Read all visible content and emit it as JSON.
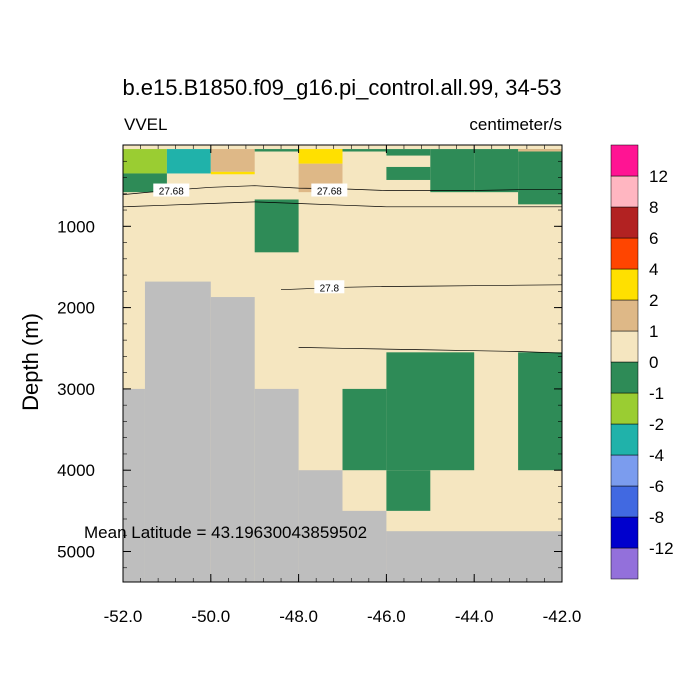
{
  "chart_data": {
    "type": "heatmap",
    "title": "b.e15.B1850.f09_g16.pi_control.all.99, 34-53",
    "left_label": "VVEL",
    "right_label": "centimeter/s",
    "ylabel": "Depth (m)",
    "xlabel": "",
    "xlim": [
      -52.0,
      -42.0
    ],
    "ylim": [
      0,
      5375
    ],
    "y_reversed": true,
    "x_ticks": [
      -52.0,
      -50.0,
      -48.0,
      -46.0,
      -44.0,
      -42.0
    ],
    "x_tick_labels": [
      "-52.0",
      "-50.0",
      "-48.0",
      "-46.0",
      "-44.0",
      "-42.0"
    ],
    "y_ticks": [
      1000,
      2000,
      3000,
      4000,
      5000
    ],
    "y_tick_labels": [
      "1000",
      "2000",
      "3000",
      "4000",
      "5000"
    ],
    "annotation": "Mean Latitude = 43.19630043859502",
    "colors": {
      "background_field": "#F5E6C0",
      "land_mask": "#BEBEBE",
      "axis": "#000000"
    },
    "colorbar": {
      "labels": [
        "12",
        "8",
        "6",
        "4",
        "2",
        "1",
        "0",
        "-1",
        "-2",
        "-4",
        "-6",
        "-8",
        "-12"
      ],
      "colors": [
        "#9370DB",
        "#0000CD",
        "#4169E1",
        "#7B9CEE",
        "#20B2AA",
        "#9ACD32",
        "#2E8B57",
        "#F5E6C0",
        "#DEB887",
        "#FFE000",
        "#FF4500",
        "#B22222",
        "#FFB6C1",
        "#FF1493"
      ]
    },
    "cells": [
      {
        "x0": -52.0,
        "x1": -51.0,
        "y0": 50,
        "y1": 350,
        "value": "-1",
        "color": "#9ACD32"
      },
      {
        "x0": -52.0,
        "x1": -51.0,
        "y0": 350,
        "y1": 580,
        "value": "-0.5",
        "color": "#2E8B57"
      },
      {
        "x0": -51.0,
        "x1": -50.0,
        "y0": 50,
        "y1": 350,
        "value": "-2",
        "color": "#20B2AA"
      },
      {
        "x0": -50.0,
        "x1": -49.0,
        "y0": 50,
        "y1": 330,
        "value": "1",
        "color": "#DEB887"
      },
      {
        "x0": -50.0,
        "x1": -49.0,
        "y0": 330,
        "y1": 360,
        "value": "2",
        "color": "#FFE000"
      },
      {
        "x0": -49.0,
        "x1": -48.0,
        "y0": 50,
        "y1": 80,
        "value": "-0.5",
        "color": "#2E8B57"
      },
      {
        "x0": -48.0,
        "x1": -47.0,
        "y0": 50,
        "y1": 230,
        "value": "2",
        "color": "#FFE000"
      },
      {
        "x0": -48.0,
        "x1": -47.0,
        "y0": 230,
        "y1": 580,
        "value": "1",
        "color": "#DEB887"
      },
      {
        "x0": -47.0,
        "x1": -46.0,
        "y0": 50,
        "y1": 80,
        "value": "-0.5",
        "color": "#2E8B57"
      },
      {
        "x0": -46.0,
        "x1": -45.0,
        "y0": 50,
        "y1": 130,
        "value": "-0.5",
        "color": "#2E8B57"
      },
      {
        "x0": -46.0,
        "x1": -45.0,
        "y0": 270,
        "y1": 430,
        "value": "-0.5",
        "color": "#2E8B57"
      },
      {
        "x0": -45.0,
        "x1": -44.0,
        "y0": 50,
        "y1": 580,
        "value": "-0.5",
        "color": "#2E8B57"
      },
      {
        "x0": -44.0,
        "x1": -43.0,
        "y0": 50,
        "y1": 580,
        "value": "-0.5",
        "color": "#2E8B57"
      },
      {
        "x0": -43.0,
        "x1": -42.0,
        "y0": 50,
        "y1": 730,
        "value": "-0.5",
        "color": "#2E8B57"
      },
      {
        "x0": -43.0,
        "x1": -42.0,
        "y0": 50,
        "y1": 80,
        "value": "2",
        "color": "#DEB887"
      },
      {
        "x0": -49.0,
        "x1": -48.0,
        "y0": 670,
        "y1": 1320,
        "value": "-0.5",
        "color": "#2E8B57"
      },
      {
        "x0": -47.0,
        "x1": -46.0,
        "y0": 3000,
        "y1": 4000,
        "value": "-0.5",
        "color": "#2E8B57"
      },
      {
        "x0": -46.0,
        "x1": -44.0,
        "y0": 2550,
        "y1": 4000,
        "value": "-0.5",
        "color": "#2E8B57"
      },
      {
        "x0": -46.0,
        "x1": -45.0,
        "y0": 4000,
        "y1": 4500,
        "value": "-0.5",
        "color": "#2E8B57"
      },
      {
        "x0": -43.0,
        "x1": -42.0,
        "y0": 2550,
        "y1": 4000,
        "value": "-0.5",
        "color": "#2E8B57"
      }
    ],
    "land": [
      {
        "x0": -52.0,
        "x1": -51.5,
        "y0": 3000,
        "y1": 5375
      },
      {
        "x0": -51.5,
        "x1": -50.0,
        "y0": 1680,
        "y1": 5375
      },
      {
        "x0": -50.0,
        "x1": -49.0,
        "y0": 1870,
        "y1": 5375
      },
      {
        "x0": -49.0,
        "x1": -48.0,
        "y0": 3000,
        "y1": 5375
      },
      {
        "x0": -48.0,
        "x1": -47.0,
        "y0": 4000,
        "y1": 5375
      },
      {
        "x0": -47.0,
        "x1": -46.0,
        "y0": 4500,
        "y1": 5375
      },
      {
        "x0": -46.0,
        "x1": -42.0,
        "y0": 4750,
        "y1": 5375
      }
    ],
    "contours": [
      {
        "label": "27.68",
        "label_x": -50.9,
        "label_y": 560,
        "points": [
          [
            -52.0,
            610
          ],
          [
            -51.0,
            560
          ],
          [
            -50.0,
            520
          ],
          [
            -49.0,
            500
          ],
          [
            -48.0,
            530
          ],
          [
            -47.0,
            540
          ],
          [
            -46.0,
            560
          ],
          [
            -45.0,
            560
          ],
          [
            -44.0,
            560
          ],
          [
            -43.0,
            550
          ],
          [
            -42.0,
            550
          ]
        ]
      },
      {
        "label": "27.68",
        "label_x": -47.3,
        "label_y": 560,
        "points": []
      },
      {
        "label": "",
        "label_x": null,
        "label_y": null,
        "points": [
          [
            -52.0,
            760
          ],
          [
            -51.0,
            740
          ],
          [
            -50.0,
            720
          ],
          [
            -49.0,
            700
          ],
          [
            -48.0,
            720
          ],
          [
            -47.0,
            740
          ],
          [
            -46.0,
            760
          ],
          [
            -45.0,
            760
          ],
          [
            -44.0,
            760
          ],
          [
            -43.0,
            760
          ],
          [
            -42.0,
            760
          ]
        ]
      },
      {
        "label": "27.8",
        "label_x": -47.3,
        "label_y": 1750,
        "points": [
          [
            -48.4,
            1780
          ],
          [
            -47.0,
            1750
          ],
          [
            -46.0,
            1740
          ],
          [
            -45.0,
            1735
          ],
          [
            -44.0,
            1730
          ],
          [
            -43.0,
            1725
          ],
          [
            -42.0,
            1720
          ]
        ]
      },
      {
        "label": "",
        "label_x": null,
        "label_y": null,
        "points": [
          [
            -48.0,
            2490
          ],
          [
            -47.0,
            2500
          ],
          [
            -46.0,
            2510
          ],
          [
            -45.0,
            2520
          ],
          [
            -44.0,
            2530
          ],
          [
            -43.0,
            2540
          ],
          [
            -42.0,
            2560
          ]
        ]
      }
    ]
  }
}
